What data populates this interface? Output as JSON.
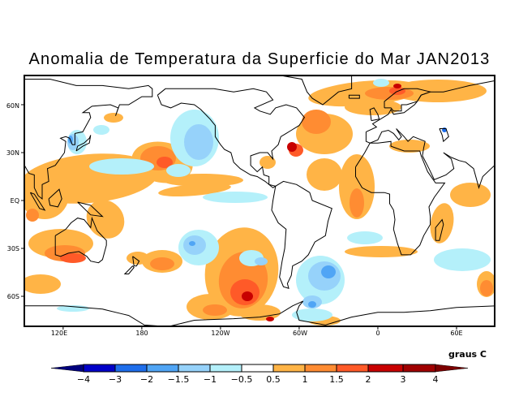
{
  "title": "Anomalia de Temperatura da Superficie do Mar JAN2013",
  "lat_labels": [
    "60N",
    "30N",
    "EQ",
    "30S",
    "60S"
  ],
  "lon_labels": [
    "120E",
    "180",
    "120W",
    "60W",
    "0",
    "60E"
  ],
  "colorbar": {
    "units": "graus C",
    "labels": [
      "-4",
      "-3",
      "-2",
      "-1.5",
      "-1",
      "-0.5",
      "0.5",
      "1",
      "1.5",
      "2",
      "3",
      "4"
    ],
    "colors": [
      "#00007d",
      "#0000c8",
      "#1e6eeb",
      "#50a5f5",
      "#96d2fa",
      "#b4f0fa",
      "#ffffff",
      "#ffb446",
      "#ff8c32",
      "#ff5a28",
      "#c80000",
      "#a00000",
      "#7d0000"
    ]
  }
}
